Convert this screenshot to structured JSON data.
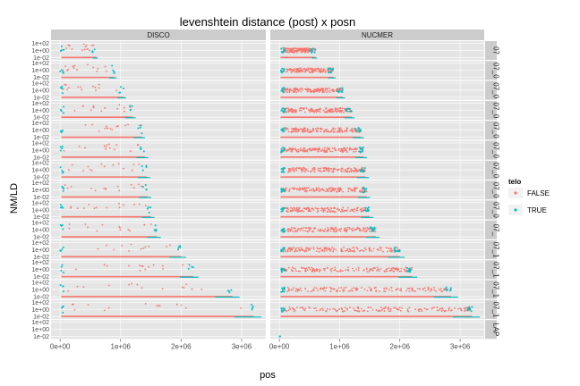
{
  "chart_data": {
    "type": "scatter",
    "title": "levenshtein distance (post) x posn",
    "xlabel": "pos",
    "ylabel": "NM/LD",
    "x_ticks": [
      "0e+00",
      "1e+06",
      "2e+06",
      "3e+06"
    ],
    "x_tick_values": [
      0,
      1000000,
      2000000,
      3000000
    ],
    "xlim": [
      -150000,
      3400000
    ],
    "y_ticks": [
      "1e+02",
      "1e+00",
      "1e-02"
    ],
    "y_tick_values": [
      100,
      1,
      0.01
    ],
    "y_scale": "log10",
    "ylim": [
      0.002,
      400
    ],
    "facet_columns": [
      "DISCO",
      "NUCMER"
    ],
    "facet_rows": [
      "07",
      "07_0",
      "07_0",
      "07_0",
      "07_0",
      "07_0",
      "07_0",
      "07_0",
      "07_0",
      "07_",
      "07_1",
      "07_1",
      "07_1",
      "07_1",
      "LAP"
    ],
    "legend": {
      "title": "telo",
      "placement": "right",
      "entries": [
        {
          "label": "FALSE",
          "color": "#f8766d"
        },
        {
          "label": "TRUE",
          "color": "#00bfc4"
        }
      ]
    },
    "grid": true,
    "panel_lengths": [
      600000,
      900000,
      1050000,
      1200000,
      1350000,
      1400000,
      1430000,
      1450000,
      1500000,
      1600000,
      2000000,
      2200000,
      2850000,
      3200000,
      0
    ],
    "series": [
      {
        "name": "FALSE",
        "color": "#f8766d"
      },
      {
        "name": "TRUE",
        "color": "#00bfc4"
      }
    ]
  }
}
